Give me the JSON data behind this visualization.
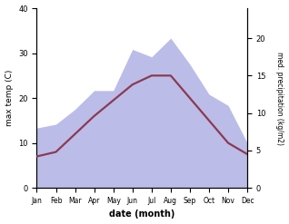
{
  "months": [
    "Jan",
    "Feb",
    "Mar",
    "Apr",
    "May",
    "Jun",
    "Jul",
    "Aug",
    "Sep",
    "Oct",
    "Nov",
    "Dec"
  ],
  "temp": [
    7.0,
    8.0,
    12.0,
    16.0,
    19.5,
    23.0,
    25.0,
    25.0,
    20.0,
    15.0,
    10.0,
    7.5
  ],
  "precip": [
    8.0,
    8.5,
    10.5,
    13.0,
    13.0,
    18.5,
    17.5,
    20.0,
    16.5,
    12.5,
    11.0,
    6.0
  ],
  "temp_color": "#8B3A52",
  "precip_fill_color": "#bbbde8",
  "ylabel_left": "max temp (C)",
  "ylabel_right": "med. precipitation (kg/m2)",
  "xlabel": "date (month)",
  "ylim_left": [
    0,
    40
  ],
  "ylim_right": [
    0,
    24
  ],
  "yticks_left": [
    0,
    10,
    20,
    30,
    40
  ],
  "yticks_right": [
    0,
    5,
    10,
    15,
    20
  ],
  "background_color": "#ffffff",
  "line_width": 1.6
}
